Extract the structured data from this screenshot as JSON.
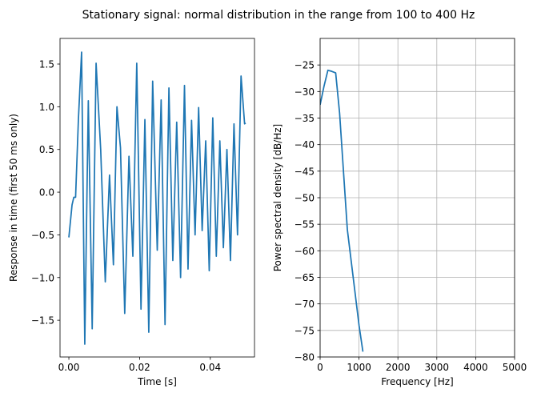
{
  "title": "Stationary signal: normal distribution in the range from 100 to 400 Hz",
  "colors": {
    "line": "#1f77b4",
    "grid": "#b0b0b0",
    "axes": "#000000"
  },
  "chart_data": [
    {
      "type": "line",
      "title": "",
      "xlabel": "Time [s]",
      "ylabel": "Response in time (first 50 ms only)",
      "xlim": [
        -0.0025,
        0.0525
      ],
      "ylim": [
        -1.93,
        1.8
      ],
      "xticks": [
        0.0,
        0.02,
        0.04
      ],
      "xticklabels": [
        "0.00",
        "0.02",
        "0.04"
      ],
      "yticks": [
        -1.5,
        -1.0,
        -0.5,
        0.0,
        0.5,
        1.0,
        1.5
      ],
      "yticklabels": [
        "−1.5",
        "−1.0",
        "−0.5",
        "0.0",
        "0.5",
        "1.0",
        "1.5"
      ],
      "grid": false,
      "series": [
        {
          "x": [
            0.0,
            0.0009,
            0.0014,
            0.0019,
            0.0027,
            0.0036,
            0.0045,
            0.0055,
            0.0066,
            0.0077,
            0.009,
            0.0103,
            0.0115,
            0.0126,
            0.0136,
            0.0146,
            0.0158,
            0.017,
            0.0181,
            0.0192,
            0.0204,
            0.0215,
            0.0226,
            0.0237,
            0.025,
            0.0261,
            0.0272,
            0.0283,
            0.0294,
            0.0305,
            0.0316,
            0.0327,
            0.0337,
            0.0347,
            0.0357,
            0.0367,
            0.0377,
            0.0387,
            0.0397,
            0.0407,
            0.0417,
            0.0427,
            0.0437,
            0.0447,
            0.0457,
            0.0467,
            0.0477,
            0.0487,
            0.0497,
            0.05
          ],
          "y": [
            -0.53,
            -0.15,
            -0.06,
            -0.06,
            0.85,
            1.64,
            -1.78,
            1.07,
            -1.6,
            1.51,
            0.5,
            -1.05,
            0.2,
            -0.85,
            1.0,
            0.52,
            -1.42,
            0.42,
            -0.75,
            1.51,
            -1.37,
            0.85,
            -1.64,
            1.3,
            -0.68,
            1.08,
            -1.55,
            1.22,
            -0.8,
            0.82,
            -1.0,
            1.25,
            -0.9,
            0.84,
            -0.5,
            0.99,
            -0.45,
            0.6,
            -0.92,
            0.87,
            -0.75,
            0.6,
            -0.65,
            0.5,
            -0.8,
            0.8,
            -0.5,
            1.36,
            0.8,
            0.81
          ]
        }
      ]
    },
    {
      "type": "line",
      "title": "",
      "xlabel": "Frequency [Hz]",
      "ylabel": "Power spectral density [dB/Hz]",
      "xlim": [
        0,
        5000
      ],
      "ylim": [
        -80,
        -20
      ],
      "xticks": [
        0,
        1000,
        2000,
        3000,
        4000,
        5000
      ],
      "xticklabels": [
        "0",
        "1000",
        "2000",
        "3000",
        "4000",
        "5000"
      ],
      "yticks": [
        -80,
        -75,
        -70,
        -65,
        -60,
        -55,
        -50,
        -45,
        -40,
        -35,
        -30,
        -25
      ],
      "yticklabels": [
        "−80",
        "−75",
        "−70",
        "−65",
        "−60",
        "−55",
        "−50",
        "−45",
        "−40",
        "−35",
        "−30",
        "−25"
      ],
      "grid": true,
      "series": [
        {
          "x": [
            0,
            100,
            200,
            300,
            400,
            500,
            600,
            700,
            800,
            900,
            1000,
            1100
          ],
          "y": [
            -32.5,
            -29,
            -26,
            -26.2,
            -26.5,
            -34,
            -45,
            -56,
            -62,
            -68,
            -74,
            -79
          ]
        }
      ]
    }
  ]
}
